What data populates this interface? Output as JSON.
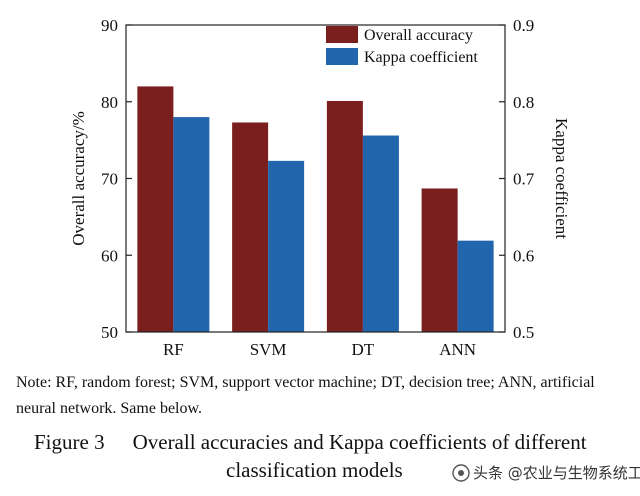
{
  "chart_data": {
    "type": "bar",
    "categories": [
      "RF",
      "SVM",
      "DT",
      "ANN"
    ],
    "series": [
      {
        "name": "Overall accuracy",
        "axis": "left",
        "color": "#7b1e1e",
        "values": [
          82.0,
          77.3,
          80.1,
          68.7
        ]
      },
      {
        "name": "Kappa coefficient",
        "axis": "right",
        "color": "#2166ac",
        "values": [
          0.78,
          0.723,
          0.756,
          0.619
        ]
      }
    ],
    "ylabel": "Overall accuracy/%",
    "ylim": [
      50,
      90
    ],
    "yticks": [
      "50",
      "60",
      "70",
      "80",
      "90"
    ],
    "y2label": "Kappa coefficient",
    "y2lim": [
      0.5,
      0.9
    ],
    "y2ticks": [
      "0.5",
      "0.6",
      "0.7",
      "0.8",
      "0.9"
    ],
    "legend_position": "top-right",
    "grid": false
  },
  "note_text": "Note: RF, random forest; SVM, support vector machine; DT, decision tree; ANN, artificial neural network. Same below.",
  "caption": {
    "label": "Figure 3",
    "line1": "Overall accuracies and Kappa coefficients of different",
    "line2": "classification models"
  },
  "watermark": "头条 @农业与生物系统工程"
}
